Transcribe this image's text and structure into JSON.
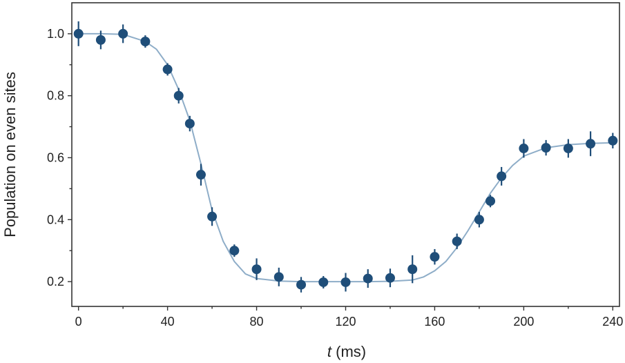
{
  "chart_data": {
    "type": "scatter",
    "xlabel_symbol": "t",
    "xlabel_unit": " (ms)",
    "ylabel": "Population on even sites",
    "xlim": [
      -3,
      243
    ],
    "ylim": [
      0.12,
      1.1
    ],
    "xticks": [
      0,
      40,
      80,
      120,
      160,
      200,
      240
    ],
    "xtick_labels": [
      "0",
      "40",
      "80",
      "120",
      "160",
      "200",
      "240"
    ],
    "yticks": [
      0.2,
      0.4,
      0.6,
      0.8,
      1.0
    ],
    "ytick_labels": [
      "0.2",
      "0.4",
      "0.6",
      "0.8",
      "1.0"
    ],
    "grid": false,
    "legend": "none",
    "series": [
      {
        "kind": "points_with_errorbars",
        "color": "#1f4e79",
        "x": [
          0,
          10,
          20,
          30,
          40,
          45,
          50,
          55,
          60,
          70,
          80,
          90,
          100,
          110,
          120,
          130,
          140,
          150,
          160,
          170,
          180,
          185,
          190,
          200,
          210,
          220,
          230,
          240
        ],
        "y": [
          1.0,
          0.98,
          1.0,
          0.975,
          0.885,
          0.8,
          0.71,
          0.545,
          0.41,
          0.3,
          0.24,
          0.215,
          0.19,
          0.198,
          0.198,
          0.21,
          0.212,
          0.24,
          0.28,
          0.33,
          0.4,
          0.46,
          0.54,
          0.63,
          0.632,
          0.63,
          0.645,
          0.655
        ],
        "err": [
          0.04,
          0.03,
          0.03,
          0.02,
          0.02,
          0.025,
          0.025,
          0.035,
          0.03,
          0.02,
          0.035,
          0.03,
          0.025,
          0.02,
          0.03,
          0.03,
          0.03,
          0.045,
          0.025,
          0.025,
          0.025,
          0.02,
          0.03,
          0.03,
          0.025,
          0.03,
          0.04,
          0.025
        ]
      },
      {
        "kind": "fit_curve",
        "color": "#8eadc8",
        "x": [
          0,
          10,
          20,
          30,
          35,
          40,
          45,
          50,
          55,
          60,
          65,
          70,
          75,
          80,
          90,
          100,
          110,
          120,
          130,
          140,
          150,
          155,
          160,
          165,
          170,
          175,
          180,
          185,
          190,
          195,
          200,
          210,
          220,
          230,
          240
        ],
        "y": [
          1.0,
          1.0,
          0.998,
          0.975,
          0.95,
          0.9,
          0.82,
          0.72,
          0.58,
          0.43,
          0.33,
          0.265,
          0.225,
          0.21,
          0.202,
          0.2,
          0.2,
          0.2,
          0.2,
          0.201,
          0.205,
          0.215,
          0.235,
          0.265,
          0.31,
          0.365,
          0.425,
          0.485,
          0.535,
          0.575,
          0.605,
          0.632,
          0.642,
          0.646,
          0.648
        ]
      }
    ]
  }
}
